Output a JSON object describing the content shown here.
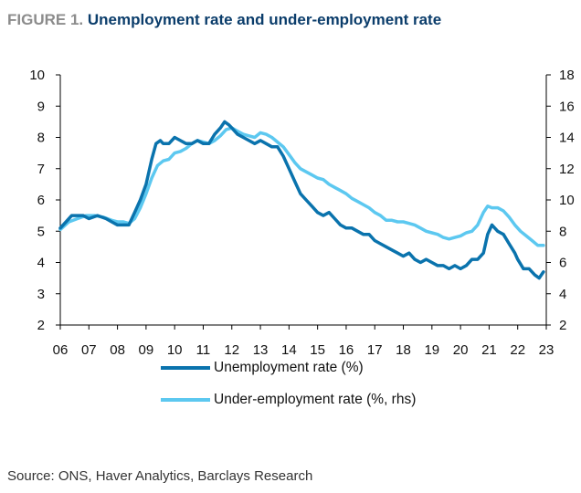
{
  "figure": {
    "label": "FIGURE 1.",
    "title": "Unemployment rate and under-employment rate"
  },
  "source": "Source: ONS, Haver Analytics, Barclays Research",
  "colors": {
    "unemployment": "#0a73ad",
    "underemployment": "#5cc8f0",
    "axis": "#000000",
    "text": "#111111"
  },
  "chart_data": {
    "type": "line",
    "title": "Unemployment rate and under-employment rate",
    "xlabel": "",
    "ylabel": "",
    "x_ticks": [
      "06",
      "07",
      "08",
      "09",
      "10",
      "11",
      "12",
      "13",
      "14",
      "15",
      "16",
      "17",
      "18",
      "19",
      "20",
      "21",
      "22",
      "23"
    ],
    "x_range": [
      2006,
      2023
    ],
    "y_left": {
      "range": [
        2,
        10
      ],
      "ticks": [
        2,
        3,
        4,
        5,
        6,
        7,
        8,
        9,
        10
      ]
    },
    "y_right": {
      "range": [
        2,
        18
      ],
      "ticks": [
        2,
        4,
        6,
        8,
        10,
        12,
        14,
        16,
        18
      ]
    },
    "grid": false,
    "legend_position": "bottom-center",
    "series": [
      {
        "name": "Unemployment rate (%)",
        "axis": "left",
        "color": "#0a73ad",
        "x": [
          2006.0,
          2006.2,
          2006.4,
          2006.6,
          2006.8,
          2007.0,
          2007.3,
          2007.6,
          2007.8,
          2008.0,
          2008.2,
          2008.4,
          2008.6,
          2008.8,
          2009.0,
          2009.2,
          2009.35,
          2009.5,
          2009.6,
          2009.8,
          2010.0,
          2010.2,
          2010.4,
          2010.6,
          2010.8,
          2011.0,
          2011.2,
          2011.4,
          2011.6,
          2011.75,
          2011.9,
          2012.0,
          2012.2,
          2012.4,
          2012.6,
          2012.8,
          2013.0,
          2013.2,
          2013.4,
          2013.6,
          2013.8,
          2014.0,
          2014.2,
          2014.4,
          2014.6,
          2014.8,
          2015.0,
          2015.2,
          2015.4,
          2015.6,
          2015.8,
          2016.0,
          2016.2,
          2016.4,
          2016.6,
          2016.8,
          2017.0,
          2017.2,
          2017.4,
          2017.6,
          2017.8,
          2018.0,
          2018.2,
          2018.4,
          2018.6,
          2018.8,
          2019.0,
          2019.2,
          2019.4,
          2019.6,
          2019.8,
          2020.0,
          2020.2,
          2020.4,
          2020.6,
          2020.8,
          2020.95,
          2021.1,
          2021.3,
          2021.5,
          2021.7,
          2021.9,
          2022.0,
          2022.2,
          2022.4,
          2022.6,
          2022.75,
          2022.9
        ],
        "values": [
          5.1,
          5.3,
          5.5,
          5.5,
          5.5,
          5.4,
          5.5,
          5.4,
          5.3,
          5.2,
          5.2,
          5.2,
          5.6,
          6.0,
          6.5,
          7.3,
          7.8,
          7.9,
          7.8,
          7.8,
          8.0,
          7.9,
          7.8,
          7.8,
          7.9,
          7.8,
          7.8,
          8.1,
          8.3,
          8.5,
          8.4,
          8.3,
          8.1,
          8.0,
          7.9,
          7.8,
          7.9,
          7.8,
          7.7,
          7.7,
          7.4,
          7.0,
          6.6,
          6.2,
          6.0,
          5.8,
          5.6,
          5.5,
          5.6,
          5.4,
          5.2,
          5.1,
          5.1,
          5.0,
          4.9,
          4.9,
          4.7,
          4.6,
          4.5,
          4.4,
          4.3,
          4.2,
          4.3,
          4.1,
          4.0,
          4.1,
          4.0,
          3.9,
          3.9,
          3.8,
          3.9,
          3.8,
          3.9,
          4.1,
          4.1,
          4.3,
          4.9,
          5.2,
          5.0,
          4.9,
          4.6,
          4.3,
          4.1,
          3.8,
          3.8,
          3.6,
          3.5,
          3.7
        ]
      },
      {
        "name": "Under-employment rate (%, rhs)",
        "axis": "right",
        "color": "#5cc8f0",
        "x": [
          2006.0,
          2006.3,
          2006.6,
          2006.9,
          2007.2,
          2007.5,
          2007.8,
          2008.0,
          2008.2,
          2008.4,
          2008.6,
          2008.8,
          2009.0,
          2009.2,
          2009.4,
          2009.6,
          2009.8,
          2010.0,
          2010.2,
          2010.4,
          2010.6,
          2010.8,
          2011.0,
          2011.2,
          2011.4,
          2011.6,
          2011.8,
          2012.0,
          2012.2,
          2012.4,
          2012.6,
          2012.8,
          2013.0,
          2013.2,
          2013.4,
          2013.6,
          2013.8,
          2014.0,
          2014.2,
          2014.4,
          2014.6,
          2014.8,
          2015.0,
          2015.2,
          2015.4,
          2015.6,
          2015.8,
          2016.0,
          2016.2,
          2016.4,
          2016.6,
          2016.8,
          2017.0,
          2017.2,
          2017.4,
          2017.6,
          2017.8,
          2018.0,
          2018.2,
          2018.4,
          2018.6,
          2018.8,
          2019.0,
          2019.2,
          2019.4,
          2019.6,
          2019.8,
          2020.0,
          2020.2,
          2020.4,
          2020.6,
          2020.8,
          2020.95,
          2021.1,
          2021.3,
          2021.5,
          2021.7,
          2021.9,
          2022.1,
          2022.3,
          2022.5,
          2022.7,
          2022.9
        ],
        "values": [
          8.1,
          8.6,
          8.8,
          9.0,
          9.0,
          8.9,
          8.7,
          8.6,
          8.6,
          8.5,
          8.8,
          9.5,
          10.4,
          11.4,
          12.2,
          12.5,
          12.6,
          13.0,
          13.1,
          13.3,
          13.6,
          13.8,
          13.7,
          13.6,
          13.8,
          14.1,
          14.5,
          14.6,
          14.4,
          14.2,
          14.1,
          14.0,
          14.3,
          14.2,
          14.0,
          13.7,
          13.4,
          12.9,
          12.4,
          12.0,
          11.8,
          11.6,
          11.4,
          11.3,
          11.0,
          10.8,
          10.6,
          10.4,
          10.1,
          9.9,
          9.7,
          9.5,
          9.2,
          9.0,
          8.7,
          8.7,
          8.6,
          8.6,
          8.5,
          8.4,
          8.2,
          8.0,
          7.9,
          7.8,
          7.6,
          7.5,
          7.6,
          7.7,
          7.9,
          8.0,
          8.4,
          9.2,
          9.6,
          9.5,
          9.5,
          9.3,
          8.9,
          8.4,
          8.0,
          7.7,
          7.4,
          7.1,
          7.1
        ]
      }
    ]
  }
}
